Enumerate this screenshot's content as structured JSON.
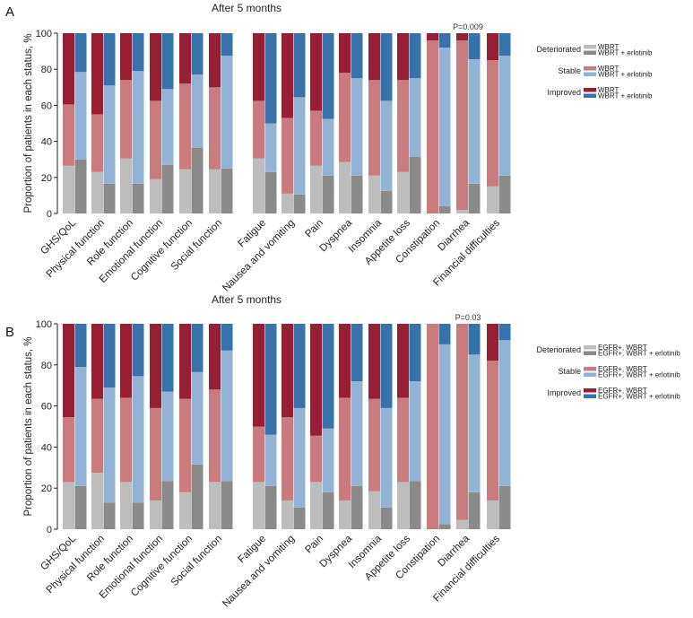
{
  "colors": {
    "wbrt": {
      "Deteriorated": "#bdbdbd",
      "Stable": "#c97b7e",
      "Improved": "#951f33"
    },
    "erl": {
      "Deteriorated": "#8a8a8a",
      "Stable": "#93b3d4",
      "Improved": "#3872ab"
    },
    "axis": "#222222"
  },
  "chart_data": [
    {
      "type": "bar",
      "stacked": true,
      "panel": "A",
      "title": "After 5 months",
      "ylabel": "Proportion of patients in each status, %",
      "ylim": [
        0,
        100
      ],
      "yticks": [
        0,
        20,
        40,
        60,
        80,
        100
      ],
      "categories": [
        "GHS/QoL",
        "Physical function",
        "Role function",
        "Emotional function",
        "Cognitive function",
        "Social function",
        "Fatigue",
        "Nausea and vomiting",
        "Pain",
        "Dyspnea",
        "Insomnia",
        "Appetite loss",
        "Constipation",
        "Diarrhea",
        "Financial difficulties"
      ],
      "stack_order": [
        "Deteriorated",
        "Stable",
        "Improved"
      ],
      "series": [
        {
          "name": "WBRT",
          "key": "wbrt",
          "values": {
            "Deteriorated": [
              26.5,
              23,
              30.5,
              19,
              24.5,
              24.5,
              30.5,
              11,
              26.5,
              28.5,
              21,
              23,
              0,
              2,
              15
            ],
            "Stable": [
              34,
              32,
              43.5,
              43.5,
              47.5,
              45.5,
              32,
              42,
              30.5,
              49.5,
              53,
              51,
              96,
              94,
              70
            ],
            "Improved": [
              39.5,
              45,
              26,
              37.5,
              28,
              30,
              37.5,
              47,
              43,
              22,
              26,
              26,
              4,
              4,
              15
            ]
          }
        },
        {
          "name": "WBRT + erlotinib",
          "key": "erl",
          "values": {
            "Deteriorated": [
              30,
              16.5,
              16.5,
              27,
              36.5,
              25,
              23,
              10.5,
              21,
              21,
              12.5,
              31.5,
              4,
              16.5,
              21
            ],
            "Stable": [
              48.5,
              54.5,
              62.5,
              42,
              40.5,
              62.5,
              27,
              54,
              31.5,
              54,
              50,
              43.5,
              88,
              69,
              66.5
            ],
            "Improved": [
              21.5,
              29,
              21,
              31,
              23,
              12.5,
              50,
              35.5,
              47.5,
              25,
              37.5,
              25,
              8,
              14.5,
              12.5
            ]
          }
        }
      ],
      "annotations": [
        {
          "category": "Diarrhea",
          "text": "P=0.009"
        }
      ],
      "legend": {
        "position": "right",
        "groups": [
          {
            "status": "Deteriorated",
            "entries": [
              "WBRT",
              "WBRT + erlotinib"
            ]
          },
          {
            "status": "Stable",
            "entries": [
              "WBRT",
              "WBRT + erlotinib"
            ]
          },
          {
            "status": "Improved",
            "entries": [
              "WBRT",
              "WBRT + erlotinib"
            ]
          }
        ]
      }
    },
    {
      "type": "bar",
      "stacked": true,
      "panel": "B",
      "title": "After 5 months",
      "ylabel": "Proportion of patients in each status, %",
      "ylim": [
        0,
        100
      ],
      "yticks": [
        0,
        20,
        40,
        60,
        80,
        100
      ],
      "categories": [
        "GHS/QoL",
        "Physical function",
        "Role function",
        "Emotional function",
        "Cognitive function",
        "Social function",
        "Fatigue",
        "Nausea and vomiting",
        "Pain",
        "Dyspnea",
        "Insomnia",
        "Appetite loss",
        "Constipation",
        "Diarrhea",
        "Financial difficulties"
      ],
      "stack_order": [
        "Deteriorated",
        "Stable",
        "Improved"
      ],
      "series": [
        {
          "name": "EGFR+, WBRT",
          "key": "wbrt",
          "values": {
            "Deteriorated": [
              23,
              27.5,
              23,
              14,
              18,
              23,
              23,
              14,
              23,
              14,
              18.5,
              23,
              0,
              4.5,
              14
            ],
            "Stable": [
              31.5,
              36,
              41,
              45,
              45.5,
              45,
              27,
              40.5,
              22.5,
              50,
              45,
              41,
              100,
              95.5,
              68
            ],
            "Improved": [
              45.5,
              36.5,
              36,
              41,
              36.5,
              32,
              50,
              45.5,
              54.5,
              36,
              36.5,
              36,
              0,
              0,
              18
            ]
          }
        },
        {
          "name": "EGFR+, WBRT + erlotinib",
          "key": "erl",
          "values": {
            "Deteriorated": [
              21,
              13,
              13,
              23.5,
              31.5,
              23.5,
              21,
              10.5,
              18,
              21,
              10.5,
              23.5,
              2.5,
              18,
              21
            ],
            "Stable": [
              58,
              56,
              61.5,
              43.5,
              45,
              63.5,
              25,
              48.5,
              31,
              51,
              48.5,
              48.5,
              87.5,
              67,
              71
            ],
            "Improved": [
              21,
              31,
              25.5,
              33,
              23.5,
              13,
              54,
              41,
              51,
              28,
              41,
              28,
              10,
              15,
              8
            ]
          }
        }
      ],
      "annotations": [
        {
          "category": "Diarrhea",
          "text": "P=0.03"
        }
      ],
      "legend": {
        "position": "right",
        "groups": [
          {
            "status": "Deteriorated",
            "entries": [
              "EGFR+, WBRT",
              "EGFR+, WBRT + erlotinib"
            ]
          },
          {
            "status": "Stable",
            "entries": [
              "EGFR+, WBRT",
              "EGFR+, WBRT + erlotinib"
            ]
          },
          {
            "status": "Improved",
            "entries": [
              "EGFR+, WBRT",
              "EGFR+, WBRT + erlotinib"
            ]
          }
        ]
      }
    }
  ]
}
